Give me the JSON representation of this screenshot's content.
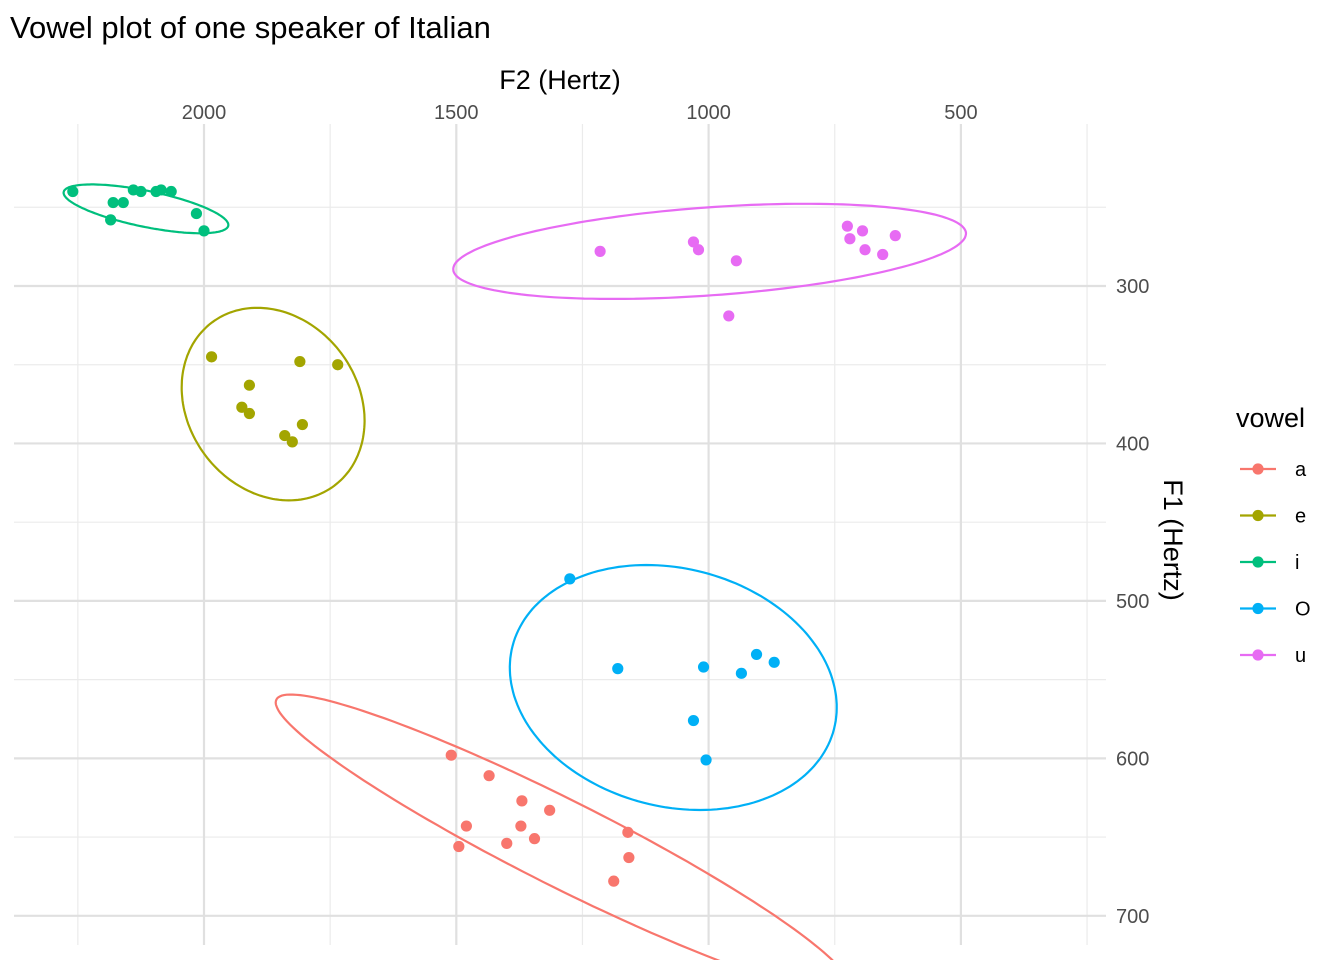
{
  "chart_data": {
    "type": "scatter",
    "title": "Vowel plot of one speaker of Italian",
    "xlabel": "F2 (Hertz)",
    "ylabel": "F1 (Hertz)",
    "x_axis_position": "top",
    "y_axis_position": "right",
    "x_reversed": true,
    "y_reversed": true,
    "xlim": [
      2500,
      250
    ],
    "ylim": [
      700,
      175
    ],
    "x_ticks": [
      2000,
      1500,
      1000,
      500
    ],
    "y_ticks": [
      300,
      400,
      500,
      600,
      700
    ],
    "grid": true,
    "legend": {
      "title": "vowel",
      "position": "right"
    },
    "series": [
      {
        "name": "a",
        "color": "#F8766D",
        "points": [
          [
            1510,
            598
          ],
          [
            1435,
            611
          ],
          [
            1370,
            627
          ],
          [
            1480,
            643
          ],
          [
            1372,
            643
          ],
          [
            1315,
            633
          ],
          [
            1495,
            656
          ],
          [
            1400,
            654
          ],
          [
            1345,
            651
          ],
          [
            1160,
            647
          ],
          [
            1158,
            663
          ],
          [
            1188,
            678
          ]
        ],
        "ellipse": {
          "cx": 1290,
          "cy": 654,
          "rx": 320,
          "ry": 43,
          "angle_deg": 26.7
        }
      },
      {
        "name": "e",
        "color": "#A3A500",
        "points": [
          [
            1985,
            345
          ],
          [
            1810,
            348
          ],
          [
            1735,
            350
          ],
          [
            1910,
            363
          ],
          [
            1925,
            377
          ],
          [
            1910,
            381
          ],
          [
            1805,
            388
          ],
          [
            1840,
            395
          ],
          [
            1825,
            399
          ]
        ],
        "ellipse": {
          "cx": 1863,
          "cy": 375,
          "rx": 102,
          "ry": 85,
          "angle_deg": 53.3
        }
      },
      {
        "name": "i",
        "color": "#00BF7D",
        "points": [
          [
            2260,
            240
          ],
          [
            2140,
            239
          ],
          [
            2125,
            240
          ],
          [
            2095,
            240
          ],
          [
            2085,
            239
          ],
          [
            2065,
            240
          ],
          [
            2160,
            247
          ],
          [
            2180,
            247
          ],
          [
            2185,
            258
          ],
          [
            2015,
            254
          ],
          [
            2000,
            265
          ]
        ],
        "ellipse": {
          "cx": 2115,
          "cy": 251,
          "rx": 84,
          "ry": 18,
          "angle_deg": 11.6
        }
      },
      {
        "name": "O",
        "color": "#00B0F6",
        "points": [
          [
            1275,
            486
          ],
          [
            1180,
            543
          ],
          [
            1010,
            542
          ],
          [
            905,
            534
          ],
          [
            870,
            539
          ],
          [
            935,
            546
          ],
          [
            1030,
            576
          ],
          [
            1005,
            601
          ]
        ],
        "ellipse": {
          "cx": 1070,
          "cy": 555,
          "rx": 166,
          "ry": 119,
          "angle_deg": 14.5
        }
      },
      {
        "name": "u",
        "color": "#E76BF3",
        "points": [
          [
            1215,
            278
          ],
          [
            725,
            262
          ],
          [
            695,
            265
          ],
          [
            630,
            268
          ],
          [
            720,
            270
          ],
          [
            1030,
            272
          ],
          [
            1020,
            277
          ],
          [
            690,
            277
          ],
          [
            655,
            280
          ],
          [
            945,
            284
          ],
          [
            960,
            319
          ]
        ],
        "ellipse": {
          "cx": 998,
          "cy": 278,
          "rx": 257,
          "ry": 44,
          "angle_deg": -4.1
        }
      }
    ]
  }
}
